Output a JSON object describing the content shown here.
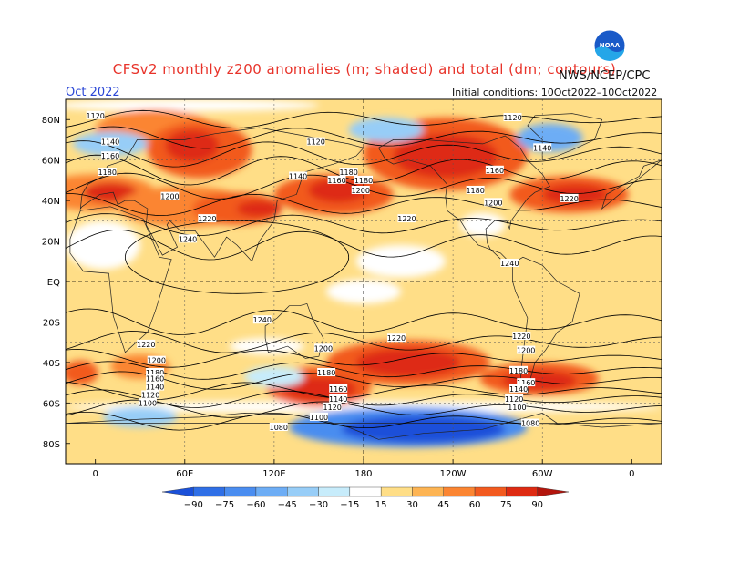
{
  "header": {
    "title": "CFSv2 monthly z200 anomalies (m; shaded) and total (dm; contours)",
    "agency": "NWS/NCEP/CPC",
    "month": "Oct 2022",
    "initial_conditions": "Initial conditions: 10Oct2022–10Oct2022",
    "logo_text": "NOAA"
  },
  "axes": {
    "lat_labels": [
      "80N",
      "60N",
      "40N",
      "20N",
      "EQ",
      "20S",
      "40S",
      "60S",
      "80S"
    ],
    "lon_labels": [
      "0",
      "60E",
      "120E",
      "180",
      "120W",
      "60W",
      "0"
    ]
  },
  "colorbar": {
    "levels": [
      -90,
      -75,
      -60,
      -45,
      -30,
      -15,
      15,
      30,
      45,
      60,
      75,
      90
    ],
    "labels": [
      "−90",
      "−75",
      "−60",
      "−45",
      "−30",
      "−15",
      "15",
      "30",
      "45",
      "60",
      "75",
      "90"
    ],
    "colors": [
      "#1a50d9",
      "#2f6fe6",
      "#4a8df0",
      "#6dadf5",
      "#97cdf7",
      "#c7ecfb",
      "#ffffff",
      "#ffde87",
      "#fdb453",
      "#fb8532",
      "#f25a1f",
      "#de2a12",
      "#b3150c"
    ]
  },
  "contour_labels": [
    {
      "text": "1120",
      "lon": 0,
      "lat": 82
    },
    {
      "text": "1140",
      "lon": 10,
      "lat": 69
    },
    {
      "text": "1160",
      "lon": 10,
      "lat": 62
    },
    {
      "text": "1180",
      "lon": 8,
      "lat": 54
    },
    {
      "text": "1200",
      "lon": 50,
      "lat": 42
    },
    {
      "text": "1220",
      "lon": 75,
      "lat": 31
    },
    {
      "text": "1240",
      "lon": 62,
      "lat": 21
    },
    {
      "text": "1120",
      "lon": 148,
      "lat": 69
    },
    {
      "text": "1140",
      "lon": 136,
      "lat": 52
    },
    {
      "text": "1160",
      "lon": 162,
      "lat": 50
    },
    {
      "text": "1180",
      "lon": 170,
      "lat": 54
    },
    {
      "text": "1180",
      "lon": 180,
      "lat": 50
    },
    {
      "text": "1200",
      "lon": 178,
      "lat": 45
    },
    {
      "text": "1220",
      "lon": 209,
      "lat": 31
    },
    {
      "text": "1240",
      "lon": 278,
      "lat": 9
    },
    {
      "text": "1160",
      "lon": 268,
      "lat": 55
    },
    {
      "text": "1180",
      "lon": 255,
      "lat": 45
    },
    {
      "text": "1200",
      "lon": 267,
      "lat": 39
    },
    {
      "text": "1220",
      "lon": 318,
      "lat": 41
    },
    {
      "text": "1120",
      "lon": 280,
      "lat": 81
    },
    {
      "text": "1140",
      "lon": 300,
      "lat": 66
    },
    {
      "text": "1240",
      "lon": 112,
      "lat": -19
    },
    {
      "text": "1220",
      "lon": 34,
      "lat": -31
    },
    {
      "text": "1200",
      "lon": 41,
      "lat": -39
    },
    {
      "text": "1180",
      "lon": 40,
      "lat": -45
    },
    {
      "text": "1160",
      "lon": 40,
      "lat": -48
    },
    {
      "text": "1140",
      "lon": 40,
      "lat": -52
    },
    {
      "text": "1120",
      "lon": 37,
      "lat": -56
    },
    {
      "text": "1100",
      "lon": 35,
      "lat": -60
    },
    {
      "text": "1200",
      "lon": 153,
      "lat": -33
    },
    {
      "text": "1220",
      "lon": 202,
      "lat": -28
    },
    {
      "text": "1180",
      "lon": 155,
      "lat": -45
    },
    {
      "text": "1160",
      "lon": 163,
      "lat": -53
    },
    {
      "text": "1140",
      "lon": 163,
      "lat": -58
    },
    {
      "text": "1120",
      "lon": 159,
      "lat": -62
    },
    {
      "text": "1100",
      "lon": 150,
      "lat": -67
    },
    {
      "text": "1080",
      "lon": 123,
      "lat": -72
    },
    {
      "text": "1220",
      "lon": 286,
      "lat": -27
    },
    {
      "text": "1200",
      "lon": 289,
      "lat": -34
    },
    {
      "text": "1180",
      "lon": 284,
      "lat": -44
    },
    {
      "text": "1160",
      "lon": 289,
      "lat": -50
    },
    {
      "text": "1140",
      "lon": 284,
      "lat": -53
    },
    {
      "text": "1120",
      "lon": 281,
      "lat": -58
    },
    {
      "text": "1100",
      "lon": 283,
      "lat": -62
    },
    {
      "text": "1080",
      "lon": 292,
      "lat": -70
    }
  ],
  "anomaly_blobs": [
    {
      "lon": 40,
      "lat": 75,
      "rx": 40,
      "ry": 10,
      "value": 60
    },
    {
      "lon": 70,
      "lat": 65,
      "rx": 35,
      "ry": 14,
      "value": 75
    },
    {
      "lon": 65,
      "lat": 67,
      "rx": 18,
      "ry": 8,
      "value": 90
    },
    {
      "lon": 0,
      "lat": 44,
      "rx": 40,
      "ry": 9,
      "value": 60
    },
    {
      "lon": 10,
      "lat": 44,
      "rx": 18,
      "ry": 5,
      "value": 90
    },
    {
      "lon": 60,
      "lat": 37,
      "rx": 45,
      "ry": 10,
      "value": 60
    },
    {
      "lon": 95,
      "lat": 36,
      "rx": 30,
      "ry": 8,
      "value": 75
    },
    {
      "lon": 110,
      "lat": 36,
      "rx": 15,
      "ry": 4,
      "value": 90
    },
    {
      "lon": 160,
      "lat": 43,
      "rx": 40,
      "ry": 10,
      "value": 75
    },
    {
      "lon": 163,
      "lat": 45,
      "rx": 20,
      "ry": 6,
      "value": 90
    },
    {
      "lon": 235,
      "lat": 63,
      "rx": 55,
      "ry": 18,
      "value": 75
    },
    {
      "lon": 235,
      "lat": 62,
      "rx": 35,
      "ry": 11,
      "value": 90
    },
    {
      "lon": 318,
      "lat": 43,
      "rx": 40,
      "ry": 9,
      "value": 75
    },
    {
      "lon": 322,
      "lat": 43,
      "rx": 22,
      "ry": 5,
      "value": 90
    },
    {
      "lon": 30,
      "lat": -42,
      "rx": 20,
      "ry": 6,
      "value": 60
    },
    {
      "lon": 150,
      "lat": -52,
      "rx": 35,
      "ry": 10,
      "value": 75
    },
    {
      "lon": 150,
      "lat": -53,
      "rx": 25,
      "ry": 6,
      "value": 90
    },
    {
      "lon": 210,
      "lat": -40,
      "rx": 55,
      "ry": 11,
      "value": 75
    },
    {
      "lon": 210,
      "lat": -40,
      "rx": 35,
      "ry": 7,
      "value": 90
    },
    {
      "lon": 298,
      "lat": -48,
      "rx": 40,
      "ry": 8,
      "value": 75
    },
    {
      "lon": 298,
      "lat": -49,
      "rx": 25,
      "ry": 5,
      "value": 90
    },
    {
      "lon": -10,
      "lat": -45,
      "rx": 12,
      "ry": 6,
      "value": 75
    }
  ],
  "negative_blobs": [
    {
      "lon": 210,
      "lat": -72,
      "rx": 80,
      "ry": 10,
      "value": -60
    },
    {
      "lon": 220,
      "lat": -73,
      "rx": 55,
      "ry": 7,
      "value": -90
    },
    {
      "lon": 10,
      "lat": 68,
      "rx": 25,
      "ry": 6,
      "value": -30
    },
    {
      "lon": 195,
      "lat": 75,
      "rx": 25,
      "ry": 6,
      "value": -30
    },
    {
      "lon": 305,
      "lat": 71,
      "rx": 22,
      "ry": 7,
      "value": -45
    },
    {
      "lon": 30,
      "lat": -67,
      "rx": 25,
      "ry": 5,
      "value": -30
    },
    {
      "lon": 120,
      "lat": -47,
      "rx": 20,
      "ry": 5,
      "value": -15
    }
  ]
}
